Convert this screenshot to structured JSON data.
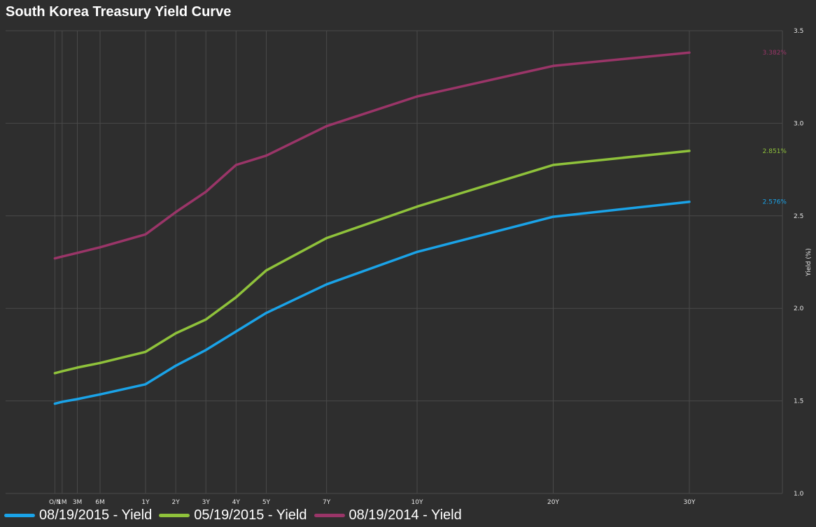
{
  "chart_data": {
    "type": "line",
    "title": "South Korea Treasury Yield Curve",
    "xlabel": "",
    "ylabel": "Yield (%)",
    "y_axis_position": "right",
    "ylim": [
      1.0,
      3.5
    ],
    "yticks": [
      "1.0",
      "1.5",
      "2.0",
      "2.5",
      "3.0",
      "3.5"
    ],
    "grid": true,
    "legend_position": "bottom-left",
    "categories": [
      "O/N",
      "1M",
      "3M",
      "6M",
      "1Y",
      "2Y",
      "3Y",
      "4Y",
      "5Y",
      "7Y",
      "10Y",
      "20Y",
      "30Y"
    ],
    "x_years": [
      0.003,
      0.083,
      0.25,
      0.5,
      1,
      2,
      3,
      4,
      5,
      7,
      10,
      20,
      30
    ],
    "series": [
      {
        "name": "08/19/2015 - Yield",
        "color": "#1aa3e8",
        "values": [
          1.485,
          1.495,
          1.51,
          1.535,
          1.59,
          1.69,
          1.775,
          1.875,
          1.975,
          2.13,
          2.305,
          2.495,
          2.576
        ],
        "end_label": "2.576%"
      },
      {
        "name": "05/19/2015 - Yield",
        "color": "#8fc23b",
        "values": [
          1.65,
          1.66,
          1.68,
          1.705,
          1.765,
          1.865,
          1.94,
          2.06,
          2.205,
          2.38,
          2.55,
          2.775,
          2.851
        ],
        "end_label": "2.851%"
      },
      {
        "name": "08/19/2014 - Yield",
        "color": "#9a3568",
        "values": [
          2.27,
          2.28,
          2.3,
          2.33,
          2.4,
          2.52,
          2.63,
          2.775,
          2.825,
          2.985,
          3.145,
          3.31,
          3.382
        ],
        "end_label": "3.382%"
      }
    ]
  }
}
